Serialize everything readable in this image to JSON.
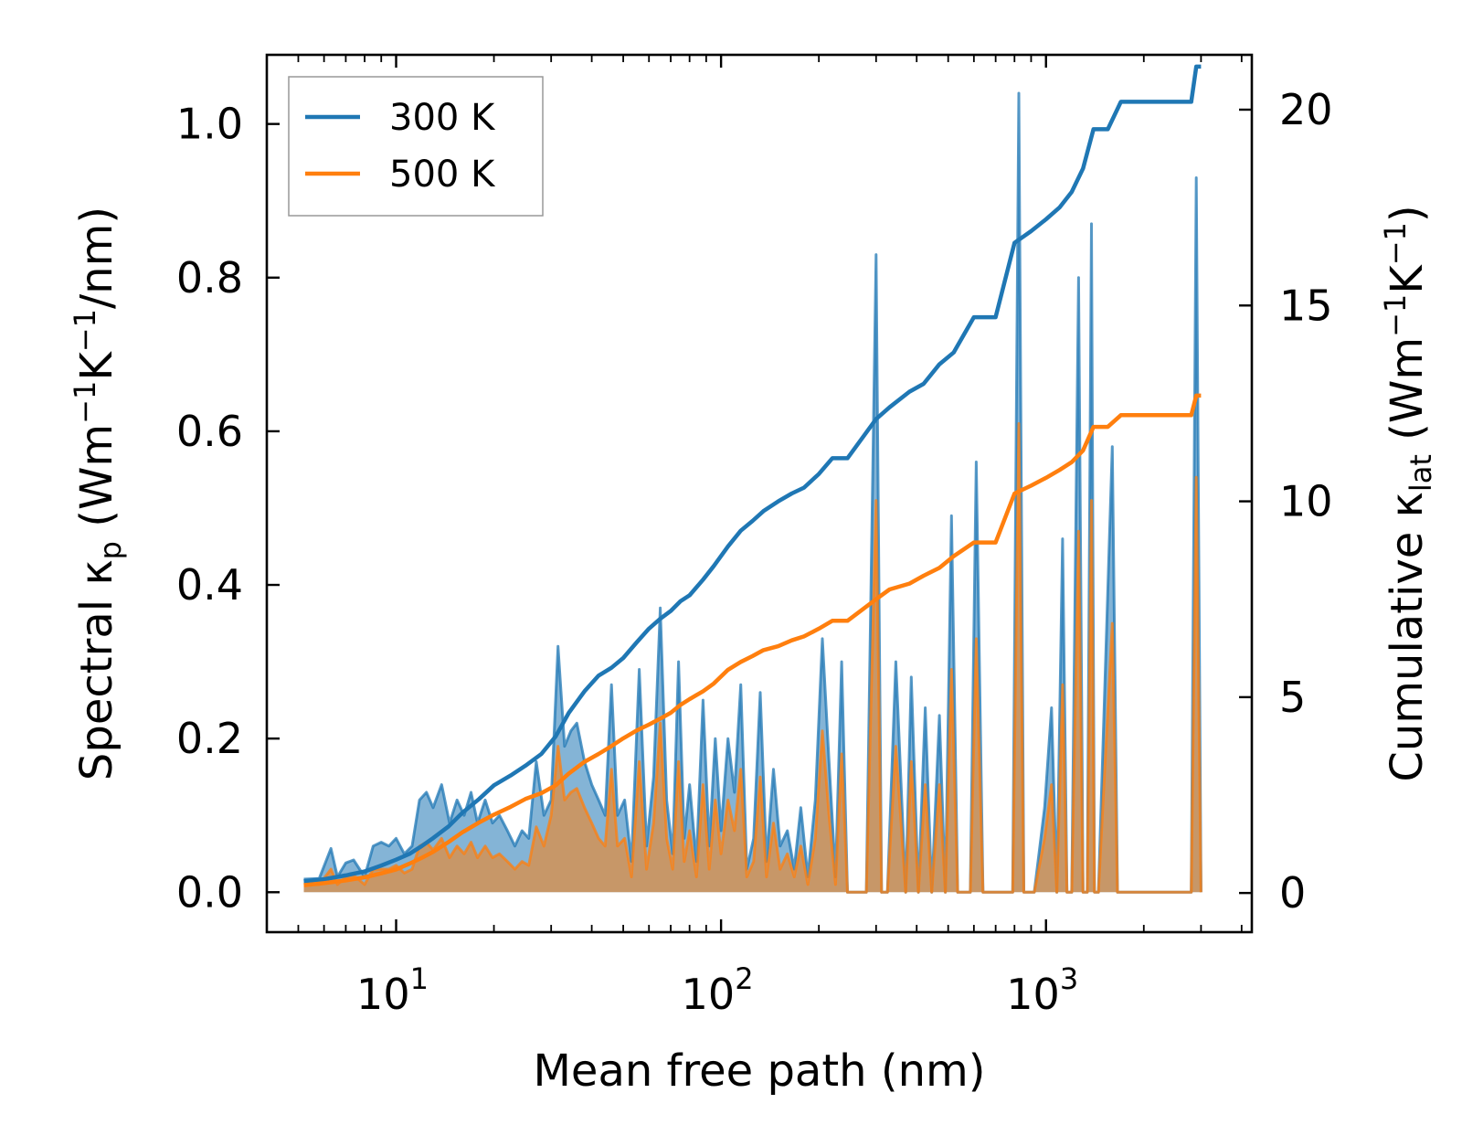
{
  "chart_data": {
    "type": "line",
    "xscale": "log",
    "xlabel": "Mean free path (nm)",
    "ylabel_left_parts": [
      "Spectral κ",
      "p",
      " (Wm",
      "−1",
      "K",
      "−1",
      "/nm)"
    ],
    "ylabel_right_parts": [
      "Cumulative κ",
      "lat",
      " (Wm",
      "−1",
      "K",
      "−1",
      ")"
    ],
    "xlim": [
      4,
      4300
    ],
    "ylim_left": [
      -0.052,
      1.09
    ],
    "ylim_right": [
      -1.0,
      21.4
    ],
    "x_ticks": [
      {
        "base": "10",
        "exp": "1",
        "value": 10
      },
      {
        "base": "10",
        "exp": "2",
        "value": 100
      },
      {
        "base": "10",
        "exp": "3",
        "value": 1000
      }
    ],
    "y_ticks_left": [
      "0.0",
      "0.2",
      "0.4",
      "0.6",
      "0.8",
      "1.0"
    ],
    "y_ticks_right": [
      "0",
      "5",
      "10",
      "15",
      "20"
    ],
    "legend": {
      "location": "upper-left",
      "entries": [
        "300 K",
        "500 K"
      ]
    },
    "colors": {
      "300 K": "#1f77b4",
      "500 K": "#ff7f0e"
    },
    "spectral_series": [
      {
        "name": "300 K",
        "axis": "left",
        "x": [
          5.2,
          5.8,
          6.3,
          6.6,
          7.0,
          7.4,
          8.0,
          8.5,
          9.0,
          9.5,
          10.0,
          10.6,
          11.2,
          11.8,
          12.4,
          13.0,
          13.8,
          14.6,
          15.4,
          16.2,
          17.0,
          17.8,
          18.8,
          19.8,
          20.8,
          22.0,
          23.2,
          24.4,
          25.6,
          27.0,
          28.5,
          30.0,
          31.5,
          33.0,
          34.5,
          36.0,
          38.0,
          40.0,
          42.0,
          44.0,
          46.0,
          48.0,
          50.5,
          53.0,
          56.0,
          59.0,
          62.0,
          65.0,
          68.0,
          71.0,
          74.0,
          77.0,
          80.0,
          84.0,
          88.0,
          92.0,
          96.0,
          100.0,
          105.0,
          110.0,
          115.0,
          120.0,
          126.0,
          132.0,
          138.0,
          145.0,
          152.0,
          160.0,
          168.0,
          176.0,
          185.0,
          195.0,
          205.0,
          215.0,
          225.0,
          235.0,
          245.0,
          255.0,
          280.0,
          300.0,
          312.0,
          325.0,
          345.0,
          370.0,
          385.0,
          405.0,
          425.0,
          445.0,
          470.0,
          490.0,
          512.0,
          535.0,
          585.0,
          610.0,
          640.0,
          665.0,
          750.0,
          790.0,
          825.0,
          855.0,
          920.0,
          990.0,
          1040.0,
          1080.0,
          1125.0,
          1160.0,
          1200.0,
          1260.0,
          1300.0,
          1340.0,
          1380.0,
          1410.0,
          1450.0,
          1600.0,
          1660.0,
          1740.0,
          2800.0,
          2900.0,
          3000.0
        ],
        "y": [
          0.017,
          0.018,
          0.057,
          0.02,
          0.038,
          0.042,
          0.02,
          0.06,
          0.065,
          0.06,
          0.07,
          0.05,
          0.06,
          0.12,
          0.13,
          0.11,
          0.14,
          0.09,
          0.12,
          0.1,
          0.13,
          0.09,
          0.12,
          0.09,
          0.1,
          0.08,
          0.06,
          0.08,
          0.07,
          0.17,
          0.1,
          0.12,
          0.32,
          0.19,
          0.21,
          0.22,
          0.17,
          0.14,
          0.12,
          0.1,
          0.27,
          0.1,
          0.12,
          0.04,
          0.29,
          0.06,
          0.15,
          0.37,
          0.12,
          0.05,
          0.3,
          0.07,
          0.14,
          0.04,
          0.25,
          0.06,
          0.2,
          0.08,
          0.2,
          0.13,
          0.27,
          0.03,
          0.07,
          0.26,
          0.04,
          0.16,
          0.06,
          0.08,
          0.03,
          0.11,
          0.02,
          0.12,
          0.33,
          0.17,
          0.02,
          0.3,
          0.0,
          0.0,
          0.0,
          0.83,
          0.0,
          0.0,
          0.3,
          0.0,
          0.28,
          0.0,
          0.24,
          0.0,
          0.23,
          0.0,
          0.49,
          0.0,
          0.0,
          0.56,
          0.0,
          0.0,
          0.0,
          0.0,
          1.04,
          0.0,
          0.0,
          0.11,
          0.24,
          0.0,
          0.46,
          0.0,
          0.0,
          0.8,
          0.0,
          0.0,
          0.87,
          0.0,
          0.0,
          0.58,
          0.0,
          0.0,
          0.0,
          0.93,
          0.0
        ]
      },
      {
        "name": "500 K",
        "axis": "left",
        "x": [
          5.2,
          5.8,
          6.3,
          6.6,
          7.0,
          7.4,
          8.0,
          8.5,
          9.0,
          9.5,
          10.0,
          10.6,
          11.2,
          11.8,
          12.4,
          13.0,
          13.8,
          14.6,
          15.4,
          16.2,
          17.0,
          17.8,
          18.8,
          19.8,
          20.8,
          22.0,
          23.2,
          24.4,
          25.6,
          27.0,
          28.5,
          30.0,
          31.5,
          33.0,
          34.5,
          36.0,
          38.0,
          40.0,
          42.0,
          44.0,
          46.0,
          48.0,
          50.5,
          53.0,
          56.0,
          59.0,
          62.0,
          65.0,
          68.0,
          71.0,
          74.0,
          77.0,
          80.0,
          84.0,
          88.0,
          92.0,
          96.0,
          100.0,
          105.0,
          110.0,
          115.0,
          120.0,
          126.0,
          132.0,
          138.0,
          145.0,
          152.0,
          160.0,
          168.0,
          176.0,
          185.0,
          195.0,
          205.0,
          215.0,
          225.0,
          235.0,
          245.0,
          255.0,
          280.0,
          300.0,
          312.0,
          325.0,
          345.0,
          370.0,
          385.0,
          405.0,
          425.0,
          445.0,
          470.0,
          490.0,
          512.0,
          535.0,
          585.0,
          610.0,
          640.0,
          665.0,
          750.0,
          790.0,
          825.0,
          855.0,
          920.0,
          990.0,
          1040.0,
          1080.0,
          1125.0,
          1160.0,
          1200.0,
          1260.0,
          1300.0,
          1340.0,
          1380.0,
          1410.0,
          1450.0,
          1600.0,
          1660.0,
          1740.0,
          2800.0,
          2900.0,
          3000.0
        ],
        "y": [
          0.01,
          0.01,
          0.03,
          0.01,
          0.02,
          0.022,
          0.01,
          0.03,
          0.03,
          0.03,
          0.035,
          0.025,
          0.03,
          0.06,
          0.065,
          0.055,
          0.07,
          0.045,
          0.06,
          0.05,
          0.065,
          0.045,
          0.06,
          0.045,
          0.05,
          0.04,
          0.03,
          0.04,
          0.035,
          0.085,
          0.06,
          0.1,
          0.19,
          0.12,
          0.13,
          0.135,
          0.11,
          0.09,
          0.07,
          0.06,
          0.16,
          0.06,
          0.07,
          0.02,
          0.17,
          0.03,
          0.09,
          0.22,
          0.07,
          0.03,
          0.17,
          0.04,
          0.08,
          0.02,
          0.14,
          0.03,
          0.12,
          0.05,
          0.12,
          0.08,
          0.16,
          0.02,
          0.04,
          0.15,
          0.02,
          0.09,
          0.03,
          0.05,
          0.02,
          0.06,
          0.01,
          0.07,
          0.21,
          0.1,
          0.01,
          0.18,
          0.0,
          0.0,
          0.0,
          0.51,
          0.0,
          0.0,
          0.19,
          0.0,
          0.17,
          0.0,
          0.14,
          0.0,
          0.14,
          0.0,
          0.29,
          0.0,
          0.0,
          0.33,
          0.0,
          0.0,
          0.0,
          0.0,
          0.61,
          0.0,
          0.0,
          0.07,
          0.14,
          0.0,
          0.27,
          0.0,
          0.0,
          0.47,
          0.0,
          0.0,
          0.51,
          0.0,
          0.0,
          0.35,
          0.0,
          0.0,
          0.0,
          0.54,
          0.0
        ]
      }
    ],
    "cumulative_series": [
      {
        "name": "300 K",
        "axis": "right",
        "x": [
          5.2,
          6.0,
          7.0,
          8.0,
          9.0,
          10.0,
          11.0,
          12.0,
          13.0,
          14.5,
          16.0,
          18.0,
          20.0,
          22.5,
          25.0,
          28.0,
          31.0,
          34.0,
          38.0,
          42.0,
          46.0,
          50.0,
          55.0,
          60.0,
          65.0,
          70.0,
          75.0,
          80.0,
          88.0,
          95.0,
          105.0,
          115.0,
          125.0,
          135.0,
          150.0,
          165.0,
          180.0,
          200.0,
          220.0,
          245.0,
          300.0,
          330.0,
          380.0,
          420.0,
          470.0,
          520.0,
          600.0,
          700.0,
          800.0,
          900.0,
          1000.0,
          1100.0,
          1200.0,
          1300.0,
          1400.0,
          1550.0,
          1700.0,
          2000.0,
          2500.0,
          2800.0,
          2900.0,
          3000.0
        ],
        "y": [
          0.3,
          0.35,
          0.45,
          0.55,
          0.7,
          0.85,
          1.0,
          1.2,
          1.4,
          1.7,
          2.05,
          2.4,
          2.75,
          3.0,
          3.25,
          3.55,
          4.0,
          4.6,
          5.15,
          5.55,
          5.75,
          6.0,
          6.4,
          6.75,
          7.0,
          7.2,
          7.45,
          7.6,
          8.0,
          8.35,
          8.85,
          9.25,
          9.5,
          9.75,
          10.0,
          10.2,
          10.35,
          10.7,
          11.1,
          11.1,
          12.1,
          12.4,
          12.8,
          13.0,
          13.5,
          13.8,
          14.7,
          14.7,
          16.6,
          16.9,
          17.2,
          17.5,
          17.9,
          18.5,
          19.5,
          19.5,
          20.2,
          20.2,
          20.2,
          20.2,
          21.1,
          21.1
        ]
      },
      {
        "name": "500 K",
        "axis": "right",
        "x": [
          5.2,
          6.0,
          7.0,
          8.0,
          9.0,
          10.0,
          11.0,
          12.0,
          13.0,
          14.5,
          16.0,
          18.0,
          20.0,
          22.5,
          25.0,
          28.0,
          31.0,
          34.0,
          38.0,
          42.0,
          46.0,
          50.0,
          55.0,
          60.0,
          65.0,
          70.0,
          75.0,
          80.0,
          88.0,
          95.0,
          105.0,
          115.0,
          125.0,
          135.0,
          150.0,
          165.0,
          180.0,
          200.0,
          220.0,
          245.0,
          300.0,
          330.0,
          380.0,
          420.0,
          470.0,
          520.0,
          600.0,
          700.0,
          800.0,
          900.0,
          1000.0,
          1100.0,
          1200.0,
          1300.0,
          1400.0,
          1550.0,
          1700.0,
          2000.0,
          2500.0,
          2800.0,
          2900.0,
          3000.0
        ],
        "y": [
          0.2,
          0.25,
          0.32,
          0.4,
          0.5,
          0.6,
          0.75,
          0.9,
          1.05,
          1.3,
          1.55,
          1.8,
          2.0,
          2.2,
          2.4,
          2.55,
          2.75,
          3.05,
          3.35,
          3.55,
          3.75,
          3.95,
          4.15,
          4.3,
          4.45,
          4.6,
          4.8,
          4.95,
          5.15,
          5.35,
          5.7,
          5.9,
          6.05,
          6.2,
          6.3,
          6.45,
          6.55,
          6.75,
          6.95,
          6.95,
          7.5,
          7.75,
          7.9,
          8.1,
          8.3,
          8.6,
          8.95,
          8.95,
          10.2,
          10.4,
          10.6,
          10.8,
          11.0,
          11.3,
          11.9,
          11.9,
          12.2,
          12.2,
          12.2,
          12.2,
          12.7,
          12.7
        ]
      }
    ]
  }
}
